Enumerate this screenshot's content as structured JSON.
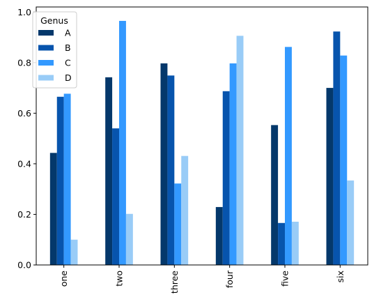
{
  "chart_data": {
    "type": "bar",
    "categories": [
      "one",
      "two",
      "three",
      "four",
      "five",
      "six"
    ],
    "series": [
      {
        "name": "A",
        "color": "#04386b",
        "values": [
          0.443,
          0.742,
          0.797,
          0.229,
          0.553,
          0.7
        ]
      },
      {
        "name": "B",
        "color": "#0754ad",
        "values": [
          0.665,
          0.54,
          0.749,
          0.687,
          0.166,
          0.923
        ]
      },
      {
        "name": "C",
        "color": "#3399ff",
        "values": [
          0.677,
          0.965,
          0.322,
          0.797,
          0.862,
          0.828
        ]
      },
      {
        "name": "D",
        "color": "#99ccf7",
        "values": [
          0.1,
          0.202,
          0.431,
          0.906,
          0.171,
          0.334
        ]
      }
    ],
    "ylim": [
      0,
      1.02
    ],
    "yticks": [
      0.0,
      0.2,
      0.4,
      0.6,
      0.8,
      1.0
    ],
    "ytick_labels": [
      "0.0",
      "0.2",
      "0.4",
      "0.6",
      "0.8",
      "1.0"
    ],
    "xlabel": "",
    "ylabel": "",
    "title": "",
    "legend": {
      "title": "Genus",
      "placement": "top-left"
    },
    "grid": false
  }
}
